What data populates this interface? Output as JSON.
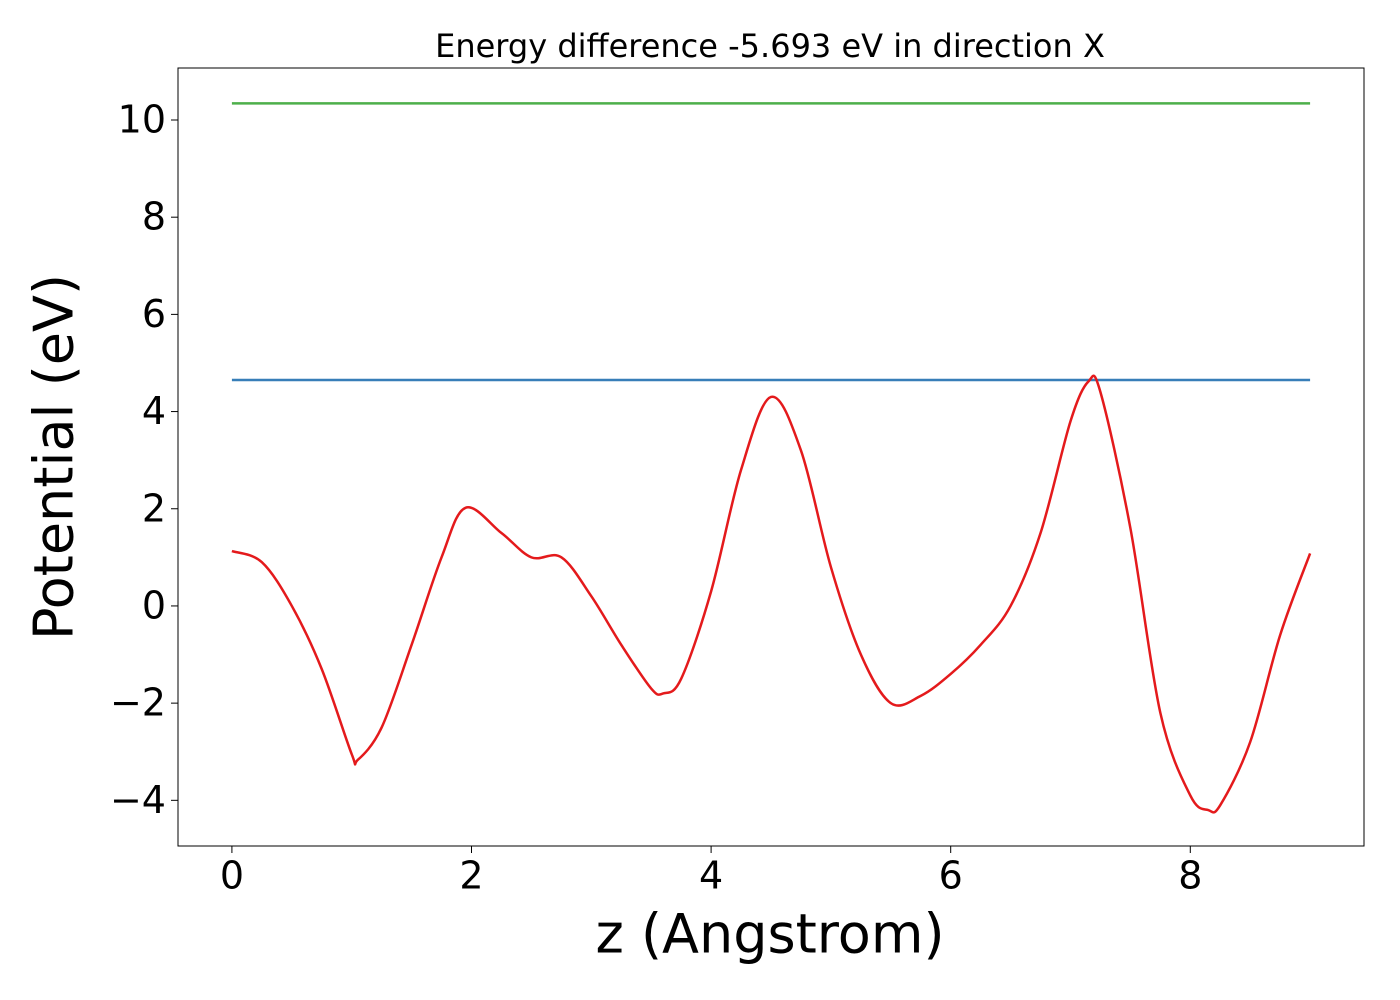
{
  "chart_data": {
    "type": "line",
    "title": "Energy difference -5.693 eV in direction X",
    "x_label": "z (Angstrom)",
    "y_label": "Potential (eV)",
    "xlim": [
      -0.45,
      9.45
    ],
    "ylim": [
      -4.94,
      11.07
    ],
    "xticks": [
      0,
      2,
      4,
      6,
      8
    ],
    "yticks": [
      {
        "value": -4,
        "label": "−4"
      },
      {
        "value": -2,
        "label": "−2"
      },
      0,
      2,
      4,
      6,
      8,
      10
    ],
    "series": [
      {
        "color": "#4daf4a",
        "x": [
          0,
          9
        ],
        "values": [
          10.343,
          10.343
        ]
      },
      {
        "color": "#377eb8",
        "x": [
          0,
          9
        ],
        "values": [
          4.65,
          4.65
        ]
      },
      {
        "color": "#e41a1c",
        "x": [
          0,
          0.25,
          0.5,
          0.75,
          1.0,
          1.05,
          1.25,
          1.5,
          1.75,
          1.95,
          2.25,
          2.5,
          2.75,
          3.0,
          3.25,
          3.5,
          3.6,
          3.75,
          4.0,
          4.25,
          4.5,
          4.75,
          5.0,
          5.25,
          5.5,
          5.75,
          6.0,
          6.25,
          6.5,
          6.75,
          7.0,
          7.15,
          7.25,
          7.5,
          7.75,
          8.0,
          8.15,
          8.25,
          8.5,
          8.75,
          9.0
        ],
        "values": [
          1.13,
          0.9,
          0.0,
          -1.3,
          -3.05,
          -3.17,
          -2.5,
          -0.8,
          1.0,
          2.02,
          1.5,
          1.0,
          1.0,
          0.2,
          -0.8,
          -1.7,
          -1.8,
          -1.5,
          0.3,
          2.8,
          4.3,
          3.2,
          0.8,
          -1.0,
          -2.0,
          -1.85,
          -1.4,
          -0.8,
          0.0,
          1.5,
          3.8,
          4.62,
          4.4,
          1.6,
          -2.2,
          -3.9,
          -4.2,
          -4.1,
          -2.8,
          -0.6,
          1.08
        ]
      }
    ]
  }
}
